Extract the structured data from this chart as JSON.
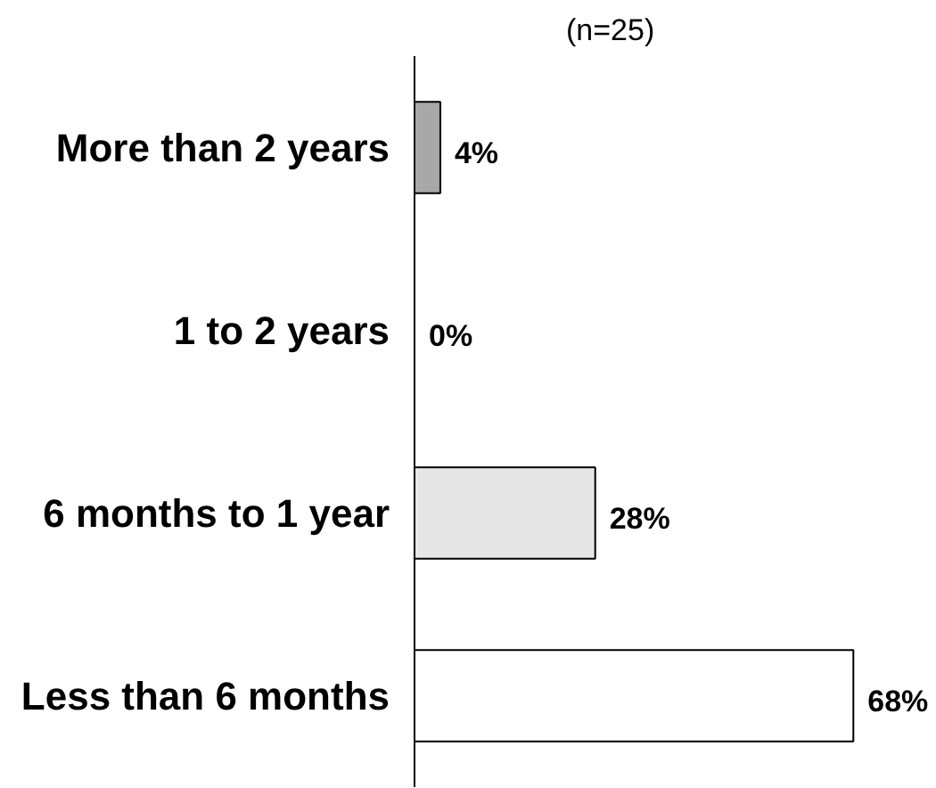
{
  "chart_data": {
    "type": "bar",
    "orientation": "horizontal",
    "subtitle": "(n=25)",
    "categories": [
      "More than 2 years",
      "1 to 2 years",
      "6 months to 1 year",
      "Less than 6 months"
    ],
    "values": [
      4,
      0,
      28,
      68
    ],
    "colors": [
      "#a8a8a8",
      null,
      "#e6e6e6",
      "#ffffff"
    ],
    "value_labels": [
      "4%",
      "0%",
      "28%",
      "68%"
    ],
    "tick_labels": "y",
    "grid": false
  }
}
